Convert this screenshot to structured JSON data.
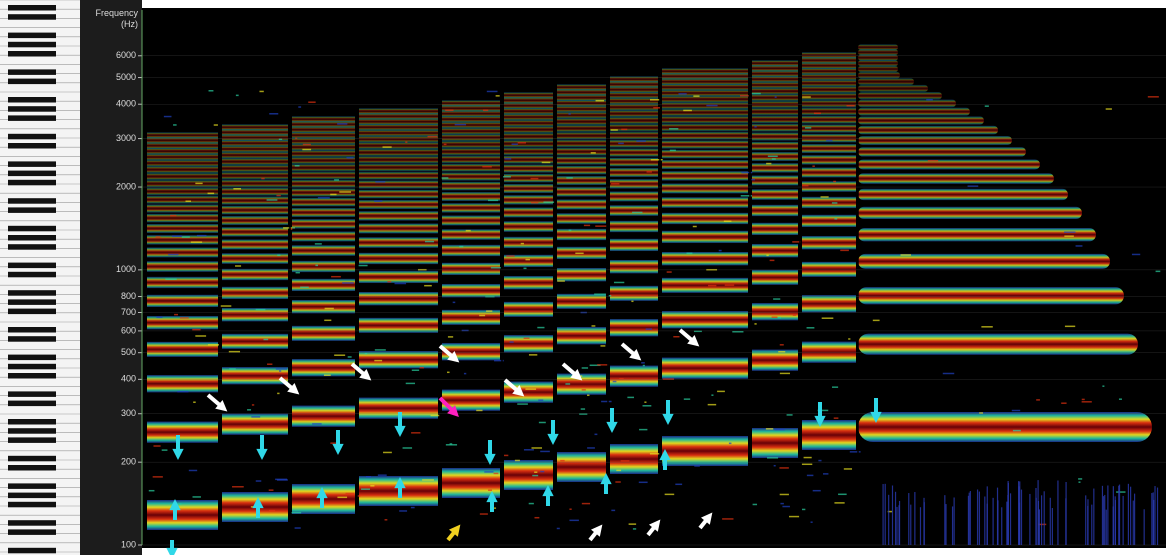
{
  "chart_data": {
    "type": "spectrogram",
    "y_label": "Frequency (Hz)",
    "ylim": [
      100,
      8800
    ],
    "log_scale": true,
    "grid": true,
    "yticks": [
      100,
      200,
      300,
      400,
      500,
      600,
      700,
      800,
      1000,
      2000,
      3000,
      4000,
      5000,
      6000
    ]
  }
}
